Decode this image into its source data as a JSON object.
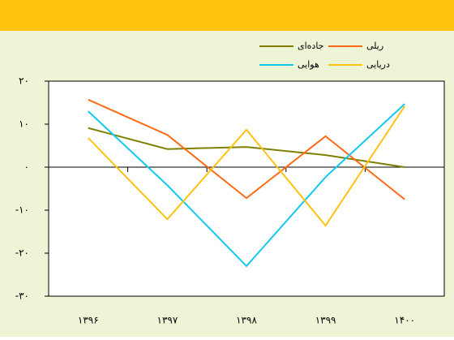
{
  "chart_data": {
    "type": "line",
    "categories": [
      "۱۳۹۶",
      "۱۳۹۷",
      "۱۳۹۸",
      "۱۳۹۹",
      "۱۴۰۰"
    ],
    "series": [
      {
        "name": "جاده‌ای",
        "color": "#808000",
        "values": [
          9.1,
          4.2,
          4.7,
          2.8,
          0
        ]
      },
      {
        "name": "ریلی",
        "color": "#ff6a13",
        "values": [
          15.7,
          7.5,
          -7.2,
          7.2,
          -7.5
        ]
      },
      {
        "name": "هوایی",
        "color": "#14c8f0",
        "values": [
          13,
          -4.2,
          -23,
          -2.3,
          14.7
        ]
      },
      {
        "name": "دریایی",
        "color": "#ffc20e",
        "values": [
          6.8,
          -12.1,
          8.7,
          -13.6,
          14.2
        ]
      }
    ],
    "ylim": [
      -30,
      20
    ],
    "yticks": [
      {
        "value": 20,
        "label": "۲۰"
      },
      {
        "value": 10,
        "label": "۱۰"
      },
      {
        "value": 0,
        "label": "۰"
      },
      {
        "value": -10,
        "label": "-۱۰"
      },
      {
        "value": -20,
        "label": "-۲۰"
      },
      {
        "value": -30,
        "label": "-۳۰"
      }
    ]
  }
}
